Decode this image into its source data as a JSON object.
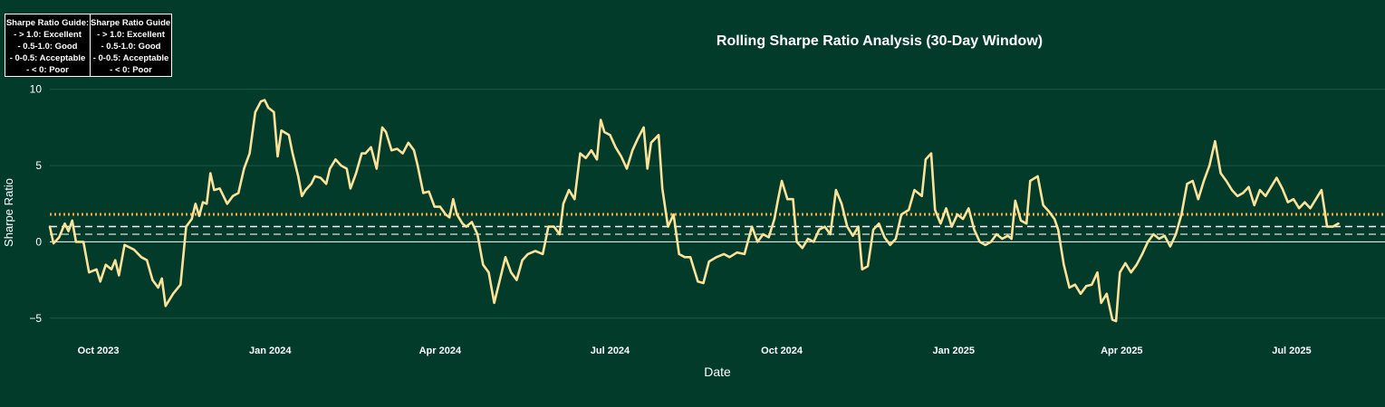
{
  "chart_data": {
    "type": "line",
    "title": "Rolling Sharpe Ratio Analysis (30-Day Window)",
    "xlabel": "Date",
    "ylabel": "Sharpe Ratio",
    "ylim": [
      -6.2,
      10.4
    ],
    "xlim": [
      "2023-09-05",
      "2025-08-20"
    ],
    "yticks": [
      10,
      5,
      0,
      -5
    ],
    "ytick_labels": [
      "10",
      "5",
      "0",
      "−5"
    ],
    "xticks": [
      "2023-10-01",
      "2024-01-01",
      "2024-04-01",
      "2024-07-01",
      "2024-10-01",
      "2025-01-01",
      "2025-04-01",
      "2025-07-01"
    ],
    "xtick_labels": [
      "Oct 2023",
      "Jan 2024",
      "Apr 2024",
      "Jul 2024",
      "Oct 2024",
      "Jan 2025",
      "Apr 2025",
      "Jul 2025"
    ],
    "grid": true,
    "reference_lines": [
      {
        "y": 1.8,
        "style": "dotted",
        "color": "#f0a848"
      },
      {
        "y": 1.0,
        "style": "dashed",
        "color": "#ffffff"
      },
      {
        "y": 0.5,
        "style": "dashed",
        "color": "#b8c4bd"
      },
      {
        "y": 0.0,
        "style": "solid",
        "color": "#ffffff"
      }
    ],
    "series": [
      {
        "color": "#fde39a",
        "points": [
          [
            "2023-09-05",
            1.0
          ],
          [
            "2023-09-07",
            -0.1
          ],
          [
            "2023-09-10",
            0.3
          ],
          [
            "2023-09-13",
            1.2
          ],
          [
            "2023-09-15",
            0.7
          ],
          [
            "2023-09-17",
            1.4
          ],
          [
            "2023-09-19",
            0.0
          ],
          [
            "2023-09-23",
            0.0
          ],
          [
            "2023-09-26",
            -2.0
          ],
          [
            "2023-09-30",
            -1.8
          ],
          [
            "2023-10-02",
            -2.6
          ],
          [
            "2023-10-05",
            -1.5
          ],
          [
            "2023-10-08",
            -1.8
          ],
          [
            "2023-10-10",
            -1.2
          ],
          [
            "2023-10-12",
            -2.2
          ],
          [
            "2023-10-15",
            -0.2
          ],
          [
            "2023-10-20",
            -0.5
          ],
          [
            "2023-10-24",
            -1.0
          ],
          [
            "2023-10-27",
            -1.2
          ],
          [
            "2023-10-30",
            -2.5
          ],
          [
            "2023-11-02",
            -3.0
          ],
          [
            "2023-11-04",
            -2.4
          ],
          [
            "2023-11-06",
            -4.2
          ],
          [
            "2023-11-10",
            -3.4
          ],
          [
            "2023-11-14",
            -2.8
          ],
          [
            "2023-11-17",
            1.0
          ],
          [
            "2023-11-20",
            1.5
          ],
          [
            "2023-11-22",
            2.5
          ],
          [
            "2023-11-24",
            1.7
          ],
          [
            "2023-11-26",
            2.6
          ],
          [
            "2023-11-28",
            2.5
          ],
          [
            "2023-11-30",
            4.5
          ],
          [
            "2023-12-02",
            3.4
          ],
          [
            "2023-12-05",
            3.5
          ],
          [
            "2023-12-07",
            3.0
          ],
          [
            "2023-12-09",
            2.5
          ],
          [
            "2023-12-12",
            3.0
          ],
          [
            "2023-12-15",
            3.2
          ],
          [
            "2023-12-18",
            4.8
          ],
          [
            "2023-12-21",
            5.8
          ],
          [
            "2023-12-24",
            8.5
          ],
          [
            "2023-12-27",
            9.2
          ],
          [
            "2023-12-29",
            9.3
          ],
          [
            "2023-12-31",
            8.8
          ],
          [
            "2024-01-03",
            8.5
          ],
          [
            "2024-01-05",
            5.6
          ],
          [
            "2024-01-07",
            7.3
          ],
          [
            "2024-01-11",
            7.0
          ],
          [
            "2024-01-13",
            5.8
          ],
          [
            "2024-01-16",
            4.3
          ],
          [
            "2024-01-18",
            3.0
          ],
          [
            "2024-01-20",
            3.4
          ],
          [
            "2024-01-23",
            3.8
          ],
          [
            "2024-01-25",
            4.3
          ],
          [
            "2024-01-28",
            4.2
          ],
          [
            "2024-01-31",
            3.8
          ],
          [
            "2024-02-02",
            4.8
          ],
          [
            "2024-02-05",
            5.4
          ],
          [
            "2024-02-08",
            5.0
          ],
          [
            "2024-02-11",
            4.8
          ],
          [
            "2024-02-13",
            3.5
          ],
          [
            "2024-02-16",
            4.5
          ],
          [
            "2024-02-19",
            5.8
          ],
          [
            "2024-02-21",
            5.8
          ],
          [
            "2024-02-24",
            6.2
          ],
          [
            "2024-02-27",
            4.8
          ],
          [
            "2024-03-01",
            7.5
          ],
          [
            "2024-03-03",
            7.2
          ],
          [
            "2024-03-06",
            6.0
          ],
          [
            "2024-03-09",
            6.1
          ],
          [
            "2024-03-12",
            5.8
          ],
          [
            "2024-03-15",
            6.5
          ],
          [
            "2024-03-18",
            6.0
          ],
          [
            "2024-03-20",
            5.0
          ],
          [
            "2024-03-23",
            3.2
          ],
          [
            "2024-03-26",
            3.3
          ],
          [
            "2024-03-29",
            2.3
          ],
          [
            "2024-04-01",
            2.3
          ],
          [
            "2024-04-04",
            1.8
          ],
          [
            "2024-04-06",
            1.6
          ],
          [
            "2024-04-08",
            2.8
          ],
          [
            "2024-04-10",
            1.8
          ],
          [
            "2024-04-13",
            1.2
          ],
          [
            "2024-04-15",
            1.0
          ],
          [
            "2024-04-18",
            1.3
          ],
          [
            "2024-04-21",
            0.5
          ],
          [
            "2024-04-24",
            -1.5
          ],
          [
            "2024-04-27",
            -2.0
          ],
          [
            "2024-04-30",
            -4.0
          ],
          [
            "2024-05-03",
            -2.5
          ],
          [
            "2024-05-06",
            -1.0
          ],
          [
            "2024-05-09",
            -2.0
          ],
          [
            "2024-05-12",
            -2.5
          ],
          [
            "2024-05-15",
            -1.2
          ],
          [
            "2024-05-18",
            -0.8
          ],
          [
            "2024-05-22",
            -0.6
          ],
          [
            "2024-05-26",
            -0.8
          ],
          [
            "2024-05-29",
            1.0
          ],
          [
            "2024-06-01",
            1.0
          ],
          [
            "2024-06-04",
            0.5
          ],
          [
            "2024-06-06",
            2.5
          ],
          [
            "2024-06-09",
            3.4
          ],
          [
            "2024-06-12",
            2.8
          ],
          [
            "2024-06-15",
            5.8
          ],
          [
            "2024-06-18",
            5.5
          ],
          [
            "2024-06-21",
            6.0
          ],
          [
            "2024-06-24",
            5.4
          ],
          [
            "2024-06-26",
            8.0
          ],
          [
            "2024-06-28",
            7.2
          ],
          [
            "2024-07-01",
            7.0
          ],
          [
            "2024-07-04",
            6.2
          ],
          [
            "2024-07-07",
            5.6
          ],
          [
            "2024-07-10",
            4.8
          ],
          [
            "2024-07-13",
            6.0
          ],
          [
            "2024-07-16",
            6.8
          ],
          [
            "2024-07-19",
            7.5
          ],
          [
            "2024-07-21",
            4.8
          ],
          [
            "2024-07-23",
            6.5
          ],
          [
            "2024-07-27",
            7.0
          ],
          [
            "2024-07-29",
            3.5
          ],
          [
            "2024-08-01",
            1.0
          ],
          [
            "2024-08-04",
            1.8
          ],
          [
            "2024-08-07",
            -0.8
          ],
          [
            "2024-08-10",
            -1.0
          ],
          [
            "2024-08-13",
            -1.0
          ],
          [
            "2024-08-17",
            -2.6
          ],
          [
            "2024-08-20",
            -2.7
          ],
          [
            "2024-08-23",
            -1.3
          ],
          [
            "2024-08-27",
            -1.0
          ],
          [
            "2024-08-31",
            -0.8
          ],
          [
            "2024-09-03",
            -1.0
          ],
          [
            "2024-09-07",
            -0.7
          ],
          [
            "2024-09-11",
            -0.8
          ],
          [
            "2024-09-15",
            1.0
          ],
          [
            "2024-09-18",
            0.0
          ],
          [
            "2024-09-21",
            0.5
          ],
          [
            "2024-09-24",
            0.3
          ],
          [
            "2024-09-27",
            1.5
          ],
          [
            "2024-09-29",
            2.8
          ],
          [
            "2024-10-01",
            4.0
          ],
          [
            "2024-10-04",
            2.8
          ],
          [
            "2024-10-07",
            2.8
          ],
          [
            "2024-10-09",
            0.0
          ],
          [
            "2024-10-12",
            -0.4
          ],
          [
            "2024-10-15",
            0.2
          ],
          [
            "2024-10-18",
            0.0
          ],
          [
            "2024-10-21",
            0.8
          ],
          [
            "2024-10-24",
            1.0
          ],
          [
            "2024-10-27",
            0.5
          ],
          [
            "2024-10-30",
            3.4
          ],
          [
            "2024-11-02",
            2.5
          ],
          [
            "2024-11-05",
            1.0
          ],
          [
            "2024-11-08",
            0.4
          ],
          [
            "2024-11-11",
            1.0
          ],
          [
            "2024-11-13",
            -1.8
          ],
          [
            "2024-11-16",
            -1.6
          ],
          [
            "2024-11-19",
            0.8
          ],
          [
            "2024-11-22",
            1.2
          ],
          [
            "2024-11-25",
            0.3
          ],
          [
            "2024-11-28",
            -0.2
          ],
          [
            "2024-12-01",
            0.2
          ],
          [
            "2024-12-04",
            1.8
          ],
          [
            "2024-12-08",
            2.1
          ],
          [
            "2024-12-11",
            3.4
          ],
          [
            "2024-12-15",
            3.0
          ],
          [
            "2024-12-17",
            5.4
          ],
          [
            "2024-12-20",
            5.8
          ],
          [
            "2024-12-22",
            2.1
          ],
          [
            "2024-12-25",
            1.2
          ],
          [
            "2024-12-28",
            2.2
          ],
          [
            "2024-12-31",
            1.0
          ],
          [
            "2025-01-03",
            1.8
          ],
          [
            "2025-01-06",
            1.5
          ],
          [
            "2025-01-09",
            2.2
          ],
          [
            "2025-01-12",
            0.8
          ],
          [
            "2025-01-15",
            0.0
          ],
          [
            "2025-01-18",
            -0.2
          ],
          [
            "2025-01-21",
            0.0
          ],
          [
            "2025-01-24",
            0.5
          ],
          [
            "2025-01-27",
            0.2
          ],
          [
            "2025-01-30",
            0.4
          ],
          [
            "2025-02-01",
            0.2
          ],
          [
            "2025-02-03",
            2.7
          ],
          [
            "2025-02-06",
            1.4
          ],
          [
            "2025-02-09",
            1.2
          ],
          [
            "2025-02-11",
            4.0
          ],
          [
            "2025-02-15",
            4.3
          ],
          [
            "2025-02-18",
            2.4
          ],
          [
            "2025-02-21",
            2.0
          ],
          [
            "2025-02-24",
            1.5
          ],
          [
            "2025-02-26",
            0.8
          ],
          [
            "2025-03-01",
            -1.5
          ],
          [
            "2025-03-04",
            -3.0
          ],
          [
            "2025-03-07",
            -2.8
          ],
          [
            "2025-03-10",
            -3.4
          ],
          [
            "2025-03-13",
            -2.9
          ],
          [
            "2025-03-16",
            -2.8
          ],
          [
            "2025-03-19",
            -2.0
          ],
          [
            "2025-03-21",
            -4.0
          ],
          [
            "2025-03-24",
            -3.4
          ],
          [
            "2025-03-27",
            -5.1
          ],
          [
            "2025-03-29",
            -5.2
          ],
          [
            "2025-03-31",
            -2.0
          ],
          [
            "2025-04-03",
            -1.4
          ],
          [
            "2025-04-06",
            -2.0
          ],
          [
            "2025-04-09",
            -1.5
          ],
          [
            "2025-04-12",
            -0.8
          ],
          [
            "2025-04-15",
            0.0
          ],
          [
            "2025-04-18",
            0.5
          ],
          [
            "2025-04-21",
            0.2
          ],
          [
            "2025-04-24",
            0.4
          ],
          [
            "2025-04-27",
            -0.3
          ],
          [
            "2025-04-30",
            0.5
          ],
          [
            "2025-05-03",
            1.8
          ],
          [
            "2025-05-06",
            3.8
          ],
          [
            "2025-05-09",
            4.0
          ],
          [
            "2025-05-12",
            2.8
          ],
          [
            "2025-05-15",
            4.0
          ],
          [
            "2025-05-18",
            5.0
          ],
          [
            "2025-05-21",
            6.6
          ],
          [
            "2025-05-24",
            4.5
          ],
          [
            "2025-05-27",
            4.0
          ],
          [
            "2025-05-30",
            3.4
          ],
          [
            "2025-06-02",
            3.0
          ],
          [
            "2025-06-05",
            3.2
          ],
          [
            "2025-06-08",
            3.6
          ],
          [
            "2025-06-11",
            2.4
          ],
          [
            "2025-06-14",
            3.4
          ],
          [
            "2025-06-17",
            3.0
          ],
          [
            "2025-06-20",
            3.6
          ],
          [
            "2025-06-23",
            4.2
          ],
          [
            "2025-06-26",
            3.5
          ],
          [
            "2025-06-29",
            2.6
          ],
          [
            "2025-07-02",
            2.8
          ],
          [
            "2025-07-05",
            2.2
          ],
          [
            "2025-07-08",
            2.6
          ],
          [
            "2025-07-11",
            2.2
          ],
          [
            "2025-07-14",
            2.8
          ],
          [
            "2025-07-17",
            3.4
          ],
          [
            "2025-07-20",
            1.0
          ],
          [
            "2025-07-23",
            1.0
          ],
          [
            "2025-07-26",
            1.2
          ]
        ]
      }
    ]
  },
  "guide_boxes": [
    {
      "title": "Sharpe Ratio Guide:",
      "lines": [
        "- > 1.0: Excellent",
        "- 0.5-1.0: Good",
        "- 0-0.5: Acceptable",
        "- < 0: Poor"
      ]
    },
    {
      "title": "Sharpe Ratio Guide:",
      "lines": [
        "- > 1.0: Excellent",
        "- 0.5-1.0: Good",
        "- 0-0.5: Acceptable",
        "- < 0: Poor"
      ]
    }
  ],
  "colors": {
    "background": "#033b2b",
    "grid": "#1c5a45",
    "line": "#fde39a"
  }
}
